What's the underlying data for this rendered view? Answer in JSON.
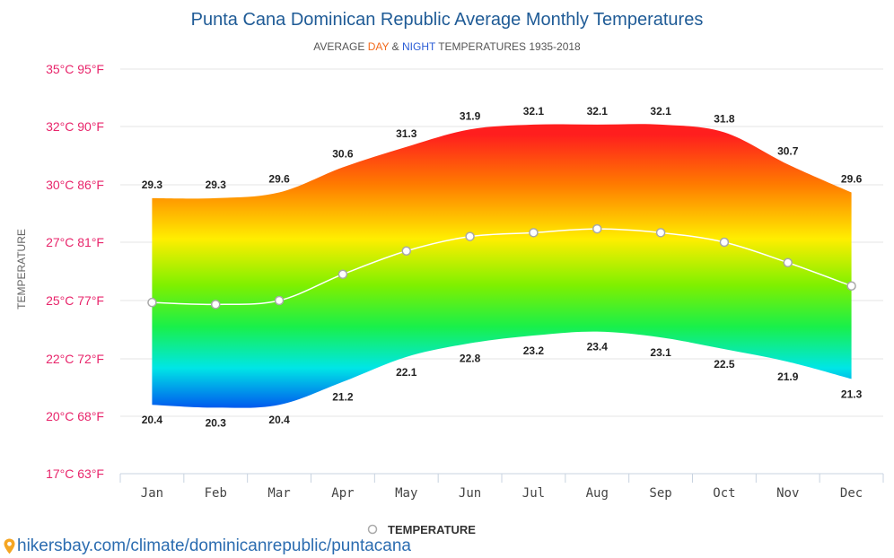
{
  "chart_data": {
    "type": "area",
    "title": "Punta Cana Dominican Republic Average Monthly Temperatures",
    "subtitle": {
      "prefix": "AVERAGE ",
      "day": "DAY",
      "amp": " & ",
      "night": "NIGHT",
      "suffix": " TEMPERATURES 1935-2018",
      "day_color": "#f26b1d",
      "night_color": "#2a5cd6"
    },
    "ylabel": "TEMPERATURE",
    "categories": [
      "Jan",
      "Feb",
      "Mar",
      "Apr",
      "May",
      "Jun",
      "Jul",
      "Aug",
      "Sep",
      "Oct",
      "Nov",
      "Dec"
    ],
    "yticks": [
      {
        "value": 17,
        "label": "17°C 63°F"
      },
      {
        "value": 20,
        "label": "20°C 68°F"
      },
      {
        "value": 22,
        "label": "22°C 72°F"
      },
      {
        "value": 25,
        "label": "25°C 77°F"
      },
      {
        "value": 27,
        "label": "27°C 81°F"
      },
      {
        "value": 30,
        "label": "30°C 86°F"
      },
      {
        "value": 32,
        "label": "32°C 90°F"
      },
      {
        "value": 35,
        "label": "35°C 95°F"
      }
    ],
    "series": [
      {
        "name": "Day",
        "values": [
          29.3,
          29.3,
          29.6,
          30.6,
          31.3,
          31.9,
          32.1,
          32.1,
          32.1,
          31.8,
          30.7,
          29.6
        ]
      },
      {
        "name": "Night",
        "values": [
          20.4,
          20.3,
          20.4,
          21.2,
          22.1,
          22.8,
          23.2,
          23.4,
          23.1,
          22.5,
          21.9,
          21.3
        ]
      },
      {
        "name": "TEMPERATURE",
        "values": [
          24.9,
          24.8,
          25.0,
          25.9,
          26.7,
          27.3,
          27.5,
          27.7,
          27.5,
          27.0,
          26.3,
          25.5
        ]
      }
    ],
    "legend": {
      "label": "TEMPERATURE",
      "position": "bottom-center"
    }
  },
  "source": {
    "text": "hikersbay.com/climate/dominicanrepublic/puntacana"
  }
}
